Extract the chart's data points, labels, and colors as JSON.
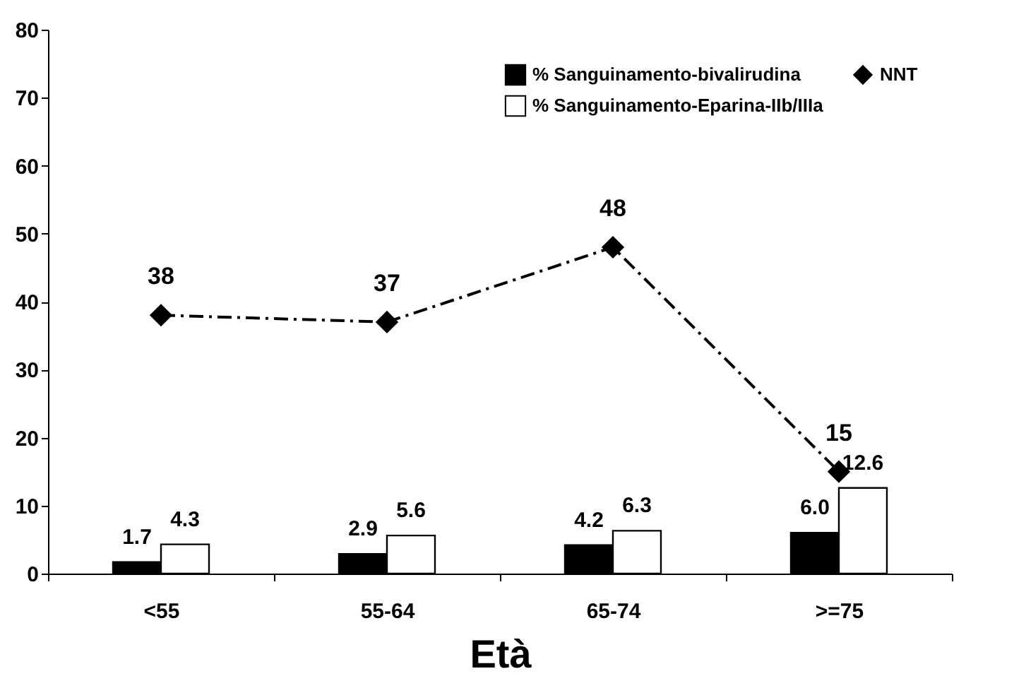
{
  "chart_data": {
    "type": "bar",
    "xlabel": "Età",
    "categories": [
      "<55",
      "55-64",
      "65-74",
      ">=75"
    ],
    "series": [
      {
        "name": "% Sanguinamento-bivalirudina",
        "color": "#000000",
        "values": [
          1.7,
          2.9,
          4.2,
          6.0
        ],
        "value_labels": [
          "1.7",
          "2.9",
          "4.2",
          "6.0"
        ]
      },
      {
        "name": "% Sanguinamento-Eparina-IIb/IIIa",
        "color": "#ffffff",
        "values": [
          4.3,
          5.6,
          6.3,
          12.6
        ],
        "value_labels": [
          "4.3",
          "5.6",
          "6.3",
          "12.6"
        ]
      },
      {
        "name": "NNT",
        "type": "line",
        "color": "#000000",
        "marker": "diamond",
        "line_style": "dashed",
        "values": [
          38,
          37,
          48,
          15
        ],
        "value_labels": [
          "38",
          "37",
          "48",
          "15"
        ]
      }
    ],
    "ylim": [
      0,
      80
    ],
    "yticks": [
      0,
      10,
      20,
      30,
      40,
      50,
      60,
      70,
      80
    ],
    "grid": false,
    "legend": "top right"
  }
}
